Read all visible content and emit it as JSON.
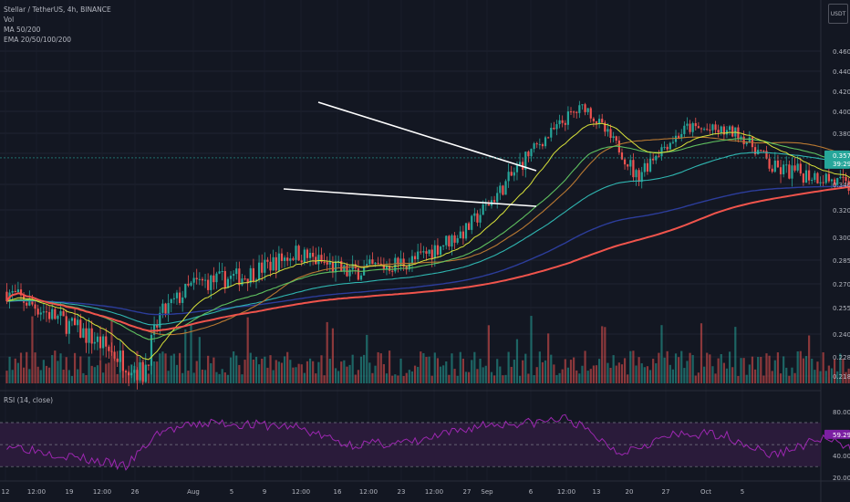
{
  "header": {
    "symbol_line": "Stellar / TetherUS, 4h, BINANCE",
    "vol_label": "Vol",
    "ma_label": "MA 50/200",
    "ema_label": "EMA 20/50/100/200"
  },
  "currency_badge": "USDT",
  "rsi_label": "RSI (14, close)",
  "price_badge": {
    "price": "0.3571",
    "countdown": "39:29"
  },
  "colors": {
    "background": "#131722",
    "up": "#26a69a",
    "down": "#ef5350",
    "ema20": "#d8e23a",
    "ema50": "#5fc05f",
    "ema100": "#2fb5b0",
    "ema200": "#2c3d9b",
    "ma200": "#f0544c",
    "ma50": "#b87832",
    "trendline": "#ffffff",
    "rsi_line": "#9c27b0",
    "rsi_band": "#2a1b3a"
  },
  "chart_data": {
    "type": "candlestick",
    "symbol": "XLMUSDT",
    "timeframe": "4h",
    "y_axis_ticks": [
      "0.4600",
      "0.4400",
      "0.4200",
      "0.4000",
      "0.3800",
      "0.3600",
      "0.3400",
      "0.3200",
      "0.3000",
      "0.2850",
      "0.2700",
      "0.2550",
      "0.2400",
      "0.2280",
      "0.2180"
    ],
    "rsi_axis_ticks": [
      "80.00",
      "60.00",
      "40.00",
      "20.00"
    ],
    "x_axis_ticks": [
      "12",
      "12:00",
      "19",
      "12:00",
      "26",
      "Aug",
      "5",
      "9",
      "12:00",
      "16",
      "12:00",
      "23",
      "12:00",
      "27",
      "Sep",
      "6",
      "12:00",
      "13",
      "20",
      "27",
      "Oct",
      "5"
    ],
    "price_key_points": [
      {
        "date": "Jul 12",
        "price": 0.265
      },
      {
        "date": "Jul 17",
        "price": 0.238
      },
      {
        "date": "Jul 20",
        "price": 0.219
      },
      {
        "date": "Jul 21",
        "price": 0.25
      },
      {
        "date": "Jul 23",
        "price": 0.27
      },
      {
        "date": "Jul 26",
        "price": 0.275
      },
      {
        "date": "Jul 29",
        "price": 0.29
      },
      {
        "date": "Aug 1",
        "price": 0.277
      },
      {
        "date": "Aug 5",
        "price": 0.285
      },
      {
        "date": "Aug 8",
        "price": 0.305
      },
      {
        "date": "Aug 11",
        "price": 0.35
      },
      {
        "date": "Aug 14",
        "price": 0.395
      },
      {
        "date": "Aug 15",
        "price": 0.405
      },
      {
        "date": "Aug 18",
        "price": 0.345
      },
      {
        "date": "Aug 21",
        "price": 0.385
      },
      {
        "date": "Aug 24",
        "price": 0.38
      },
      {
        "date": "Aug 26",
        "price": 0.35
      },
      {
        "date": "Aug 29",
        "price": 0.345
      },
      {
        "date": "Aug 31",
        "price": 0.335
      },
      {
        "date": "Sep 2",
        "price": 0.3571
      }
    ],
    "last_price": 0.3571,
    "last_rsi": 59.29,
    "rsi_levels": [
      70,
      50,
      30
    ],
    "rsi_key_points": [
      {
        "date": "Jul 12",
        "rsi": 50
      },
      {
        "date": "Jul 19",
        "rsi": 30
      },
      {
        "date": "Jul 21",
        "rsi": 62
      },
      {
        "date": "Jul 24",
        "rsi": 70
      },
      {
        "date": "Jul 29",
        "rsi": 66
      },
      {
        "date": "Aug 1",
        "rsi": 50
      },
      {
        "date": "Aug 5",
        "rsi": 52
      },
      {
        "date": "Aug 9",
        "rsi": 68
      },
      {
        "date": "Aug 12",
        "rsi": 70
      },
      {
        "date": "Aug 14",
        "rsi": 74
      },
      {
        "date": "Aug 17",
        "rsi": 43
      },
      {
        "date": "Aug 20",
        "rsi": 58
      },
      {
        "date": "Aug 23",
        "rsi": 60
      },
      {
        "date": "Aug 26",
        "rsi": 40
      },
      {
        "date": "Aug 29",
        "rsi": 56
      },
      {
        "date": "Aug 31",
        "rsi": 43
      },
      {
        "date": "Sep 2",
        "rsi": 59
      }
    ],
    "annotations": [
      "descending triangle: upper trendline from Aug 14 high falling to Sep 6",
      "lower trendline near 0.34 sloping slightly down"
    ],
    "grid": true
  }
}
